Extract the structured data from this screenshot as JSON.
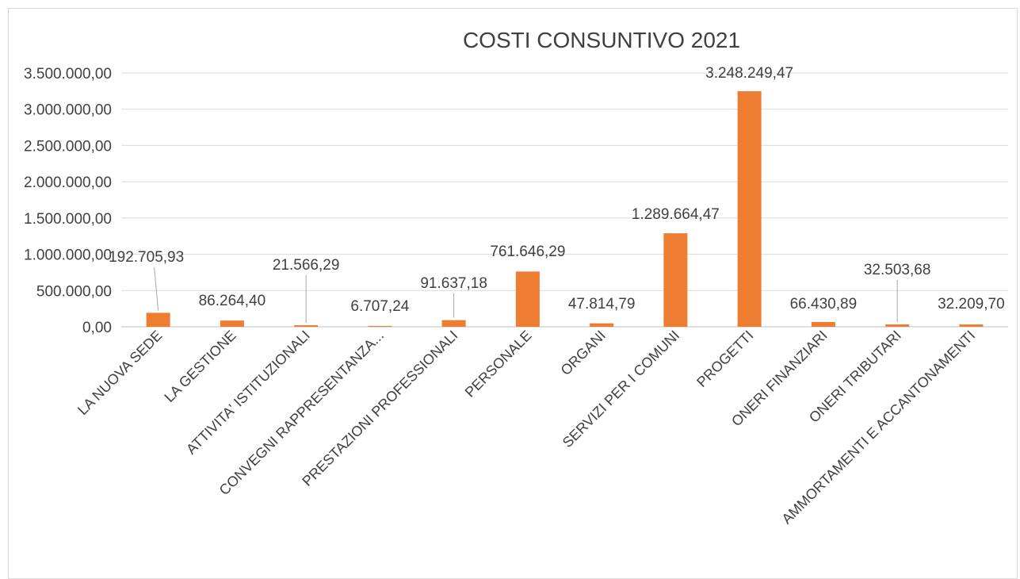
{
  "chart_data": {
    "type": "bar",
    "title": "COSTI CONSUNTIVO 2021",
    "xlabel": "",
    "ylabel": "",
    "categories": [
      "LA NUOVA SEDE",
      "LA GESTIONE",
      "ATTIVITA' ISTITUZIONALI",
      "CONVEGNI RAPPRESENTANZA...",
      "PRESTAZIONI PROFESSIONALI",
      "PERSONALE",
      "ORGANI",
      "SERVIZI PER I COMUNI",
      "PROGETTI",
      "ONERI FINANZIARI",
      "ONERI TRIBUTARI",
      "AMMORTAMENTI E ACCANTONAMENTI"
    ],
    "values": [
      192705.93,
      86264.4,
      21566.29,
      6707.24,
      91637.18,
      761646.29,
      47814.79,
      1289664.47,
      3248249.47,
      66430.89,
      32503.68,
      32209.7
    ],
    "data_labels": [
      "192.705,93",
      "86.264,40",
      "21.566,29",
      "6.707,24",
      "91.637,18",
      "761.646,29",
      "47.814,79",
      "1.289.664,47",
      "3.248.249,47",
      "66.430,89",
      "32.503,68",
      "32.209,70"
    ],
    "ylim": [
      0,
      3500000
    ],
    "yticks": [
      0,
      500000,
      1000000,
      1500000,
      2000000,
      2500000,
      3000000,
      3500000
    ],
    "ytick_labels": [
      "0,00",
      "500.000,00",
      "1.000.000,00",
      "1.500.000,00",
      "2.000.000,00",
      "2.500.000,00",
      "3.000.000,00",
      "3.500.000,00"
    ],
    "grid": true,
    "legend": "none",
    "bar_color": "#ED7D31"
  }
}
